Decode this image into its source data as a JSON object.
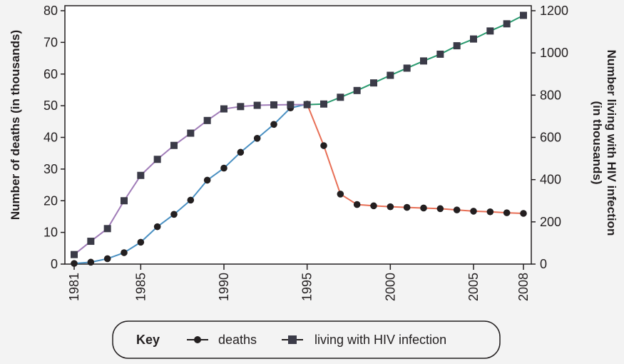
{
  "chart_data": {
    "type": "line",
    "x_ticks": [
      1981,
      1985,
      1990,
      1995,
      2000,
      2005,
      2008
    ],
    "ylabel_left": "Number of deaths (in thousands)",
    "ylabel_right_line1": "Number living with HIV infection",
    "ylabel_right_line2": "(in thousands)",
    "y_left_ticks": [
      0,
      10,
      20,
      30,
      40,
      50,
      60,
      70,
      80
    ],
    "y_right_ticks": [
      0,
      200,
      400,
      600,
      800,
      1000,
      1200
    ],
    "ylim_left": [
      0,
      80
    ],
    "ylim_right": [
      0,
      1200
    ],
    "xlim": [
      1981,
      2008
    ],
    "grid": false,
    "legend_position": "bottom-center",
    "key": {
      "title": "Key",
      "deaths_label": "deaths",
      "living_label": "living with HIV infection"
    },
    "series": [
      {
        "name": "deaths",
        "axis": "left",
        "marker": "circle",
        "x": [
          1981,
          1982,
          1983,
          1984,
          1985,
          1986,
          1987,
          1988,
          1989,
          1990,
          1991,
          1992,
          1993,
          1994,
          1995,
          1996,
          1997,
          1998,
          1999,
          2000,
          2001,
          2002,
          2003,
          2004,
          2005,
          2006,
          2007,
          2008
        ],
        "values": [
          0.2,
          0.6,
          1.7,
          3.6,
          6.9,
          11.8,
          15.7,
          20.2,
          26.5,
          30.3,
          35.3,
          39.7,
          44.1,
          49.3,
          50.5,
          37.4,
          22.1,
          18.8,
          18.4,
          18.1,
          17.9,
          17.7,
          17.5,
          17.1,
          16.7,
          16.5,
          16.2,
          16.0
        ],
        "color": "#e86f56",
        "segment_colors": {
          "rising_until": 1995,
          "rising": "#4a90c2",
          "falling": "#e86f56"
        }
      },
      {
        "name": "living with HIV infection",
        "axis": "right",
        "marker": "square",
        "x": [
          1981,
          1982,
          1983,
          1984,
          1985,
          1986,
          1987,
          1988,
          1989,
          1990,
          1991,
          1992,
          1993,
          1994,
          1995,
          1996,
          1997,
          1998,
          1999,
          2000,
          2001,
          2002,
          2003,
          2004,
          2005,
          2006,
          2007,
          2008
        ],
        "values": [
          45,
          108,
          168,
          300,
          420,
          496,
          562,
          620,
          680,
          735,
          746,
          752,
          754,
          755,
          755,
          758,
          790,
          822,
          858,
          894,
          928,
          962,
          994,
          1034,
          1066,
          1104,
          1138,
          1178
        ],
        "segment_colors": {
          "rising_until": 1995,
          "rising": "#a07cb8",
          "falling": "#2a9a6f"
        }
      }
    ],
    "colors": {
      "marker": "#231f20",
      "axis": "#231f20",
      "background": "#f3f3f3"
    }
  }
}
